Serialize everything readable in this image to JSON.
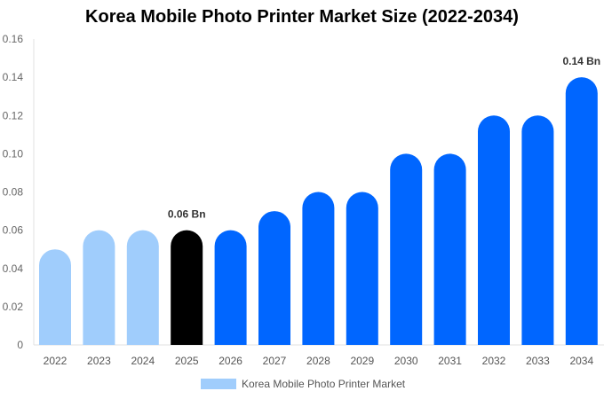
{
  "chart_data": {
    "type": "bar",
    "title": "Korea Mobile Photo Printer Market Size (2022-2034)",
    "xlabel": "",
    "ylabel": "",
    "ylim": [
      0,
      0.16
    ],
    "yticks": [
      "0",
      "0.02",
      "0.04",
      "0.06",
      "0.08",
      "0.10",
      "0.12",
      "0.14",
      "0.16"
    ],
    "categories": [
      "2022",
      "2023",
      "2024",
      "2025",
      "2026",
      "2027",
      "2028",
      "2029",
      "2030",
      "2031",
      "2032",
      "2033",
      "2034"
    ],
    "series": [
      {
        "name": "Korea Mobile Photo Printer Market",
        "values": [
          0.05,
          0.06,
          0.06,
          0.06,
          0.06,
          0.07,
          0.08,
          0.08,
          0.1,
          0.1,
          0.12,
          0.12,
          0.14
        ]
      }
    ],
    "bar_colors": [
      "#a0cdfc",
      "#a0cdfc",
      "#a0cdfc",
      "#000000",
      "#0066ff",
      "#0066ff",
      "#0066ff",
      "#0066ff",
      "#0066ff",
      "#0066ff",
      "#0066ff",
      "#0066ff",
      "#0066ff"
    ],
    "annotations": [
      {
        "category": "2025",
        "text": "0.06 Bn"
      },
      {
        "category": "2034",
        "text": "0.14 Bn"
      }
    ],
    "grid": false,
    "legend_position": "bottom"
  },
  "legend": {
    "label": "Korea Mobile Photo Printer Market",
    "color": "#a0cdfc"
  }
}
